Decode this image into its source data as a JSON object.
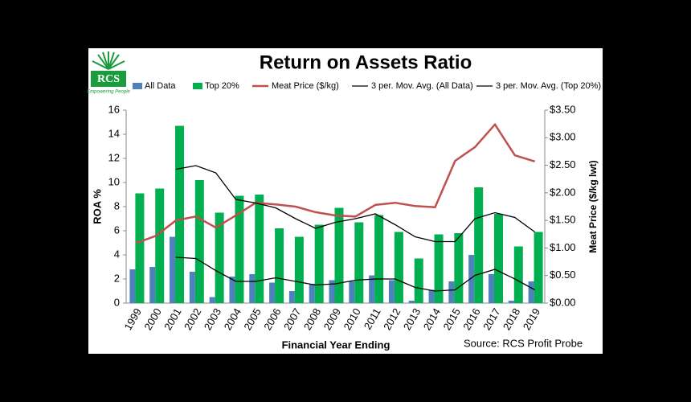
{
  "chart_data": {
    "type": "bar",
    "title": "Return on Assets Ratio",
    "logo": {
      "name": "RCS",
      "tagline": "Empowering People"
    },
    "source": "Source: RCS Profit Probe",
    "x_label": "Financial Year Ending",
    "y_label": "ROA %",
    "y2_label": "Meat Price ($/kg lwt)",
    "categories": [
      "1999",
      "2000",
      "2001",
      "2002",
      "2003",
      "2004",
      "2005",
      "2006",
      "2007",
      "2008",
      "2009",
      "2010",
      "2011",
      "2012",
      "2013",
      "2014",
      "2015",
      "2016",
      "2017",
      "2018",
      "2019"
    ],
    "ylim": [
      0,
      16
    ],
    "yticks": [
      0,
      2,
      4,
      6,
      8,
      10,
      12,
      14,
      16
    ],
    "y2lim": [
      0,
      3.5
    ],
    "y2ticks": [
      {
        "value": 0,
        "label": "$0.00"
      },
      {
        "value": 0.5,
        "label": "$0.50"
      },
      {
        "value": 1,
        "label": "$1.00"
      },
      {
        "value": 1.5,
        "label": "$1.50"
      },
      {
        "value": 2,
        "label": "$2.00"
      },
      {
        "value": 2.5,
        "label": "$2.50"
      },
      {
        "value": 3,
        "label": "$3.00"
      },
      {
        "value": 3.5,
        "label": "$3.50"
      }
    ],
    "grid": false,
    "series": [
      {
        "name": "All Data",
        "kind": "bar",
        "color": "#4f81bd",
        "axis": "y",
        "values": [
          2.8,
          3.0,
          5.5,
          2.6,
          0.5,
          2.2,
          2.4,
          1.7,
          1.0,
          1.6,
          1.9,
          1.8,
          2.3,
          1.9,
          0.2,
          1.1,
          1.8,
          4.0,
          2.4,
          0.2,
          1.8
        ]
      },
      {
        "name": "Top 20%",
        "kind": "bar",
        "color": "#00b050",
        "axis": "y",
        "values": [
          9.1,
          9.5,
          14.7,
          10.2,
          7.5,
          8.9,
          9.0,
          6.2,
          5.5,
          6.5,
          7.9,
          6.7,
          7.3,
          5.9,
          3.7,
          5.7,
          5.8,
          9.6,
          7.4,
          4.7,
          5.9
        ]
      },
      {
        "name": "Meat Price ($/kg)",
        "kind": "line",
        "color": "#c0504d",
        "axis": "y2",
        "values": [
          1.09,
          1.22,
          1.5,
          1.57,
          1.37,
          1.59,
          1.82,
          1.79,
          1.75,
          1.65,
          1.59,
          1.57,
          1.78,
          1.82,
          1.76,
          1.74,
          2.58,
          2.83,
          3.24,
          2.68,
          2.57
        ]
      },
      {
        "name": "3 per. Mov. Avg. (All Data)",
        "kind": "line",
        "color": "#000000",
        "axis": "y",
        "values": [
          null,
          null,
          3.8,
          3.7,
          2.7,
          1.8,
          1.8,
          2.1,
          1.8,
          1.5,
          1.6,
          1.9,
          2.0,
          2.0,
          1.3,
          1.0,
          1.1,
          2.3,
          2.8,
          2.0,
          1.1
        ]
      },
      {
        "name": "3 per. Mov. Avg. (Top 20%)",
        "kind": "line",
        "color": "#000000",
        "axis": "y",
        "values": [
          null,
          null,
          11.1,
          11.4,
          10.8,
          8.6,
          8.3,
          7.9,
          7.0,
          6.2,
          6.7,
          7.0,
          7.4,
          6.5,
          5.5,
          5.1,
          5.1,
          7.0,
          7.5,
          7.1,
          5.9
        ]
      }
    ]
  }
}
